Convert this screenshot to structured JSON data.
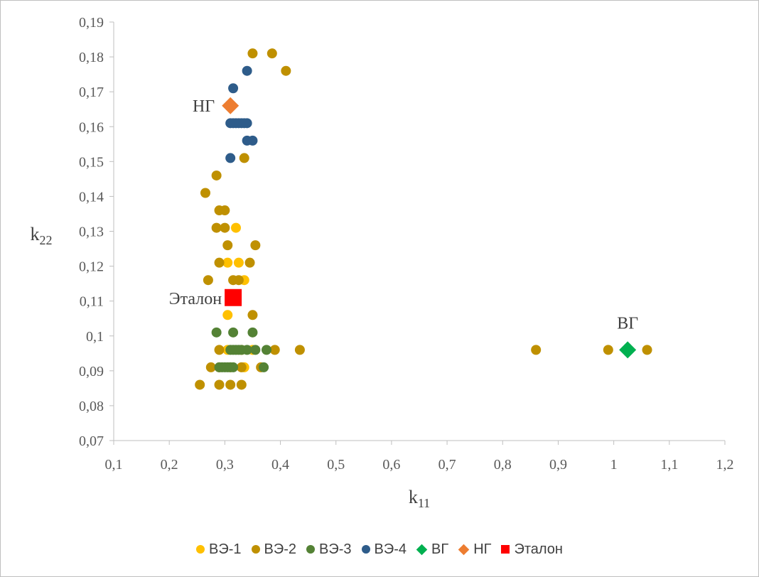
{
  "chart_data": {
    "type": "scatter",
    "title": "",
    "xlabel": "k",
    "xlabel_sub": "11",
    "ylabel": "k",
    "ylabel_sub": "22",
    "xlim": [
      0.1,
      1.2
    ],
    "ylim": [
      0.07,
      0.19
    ],
    "x_ticks": [
      0.1,
      0.2,
      0.3,
      0.4,
      0.5,
      0.6,
      0.7,
      0.8,
      0.9,
      1.0,
      1.1,
      1.2
    ],
    "x_tick_labels": [
      "0,1",
      "0,2",
      "0,3",
      "0,4",
      "0,5",
      "0,6",
      "0,7",
      "0,8",
      "0,9",
      "1",
      "1,1",
      "1,2"
    ],
    "y_ticks": [
      0.07,
      0.08,
      0.09,
      0.1,
      0.11,
      0.12,
      0.13,
      0.14,
      0.15,
      0.16,
      0.17,
      0.18,
      0.19
    ],
    "y_tick_labels": [
      "0,07",
      "0,08",
      "0,09",
      "0,1",
      "0,11",
      "0,12",
      "0,13",
      "0,14",
      "0,15",
      "0,16",
      "0,17",
      "0,18",
      "0,19"
    ],
    "grid": false,
    "legend_position": "bottom",
    "series": [
      {
        "name": "ВЭ-1",
        "marker": "circle",
        "color": "#FFC000",
        "points": [
          [
            0.305,
            0.106
          ],
          [
            0.305,
            0.121
          ],
          [
            0.325,
            0.121
          ],
          [
            0.32,
            0.131
          ],
          [
            0.335,
            0.116
          ],
          [
            0.305,
            0.096
          ],
          [
            0.33,
            0.096
          ],
          [
            0.35,
            0.096
          ],
          [
            0.31,
            0.091
          ],
          [
            0.335,
            0.091
          ]
        ]
      },
      {
        "name": "ВЭ-2",
        "marker": "circle",
        "color": "#BF9000",
        "points": [
          [
            0.35,
            0.181
          ],
          [
            0.385,
            0.181
          ],
          [
            0.41,
            0.176
          ],
          [
            0.335,
            0.151
          ],
          [
            0.285,
            0.146
          ],
          [
            0.265,
            0.141
          ],
          [
            0.29,
            0.136
          ],
          [
            0.3,
            0.136
          ],
          [
            0.285,
            0.131
          ],
          [
            0.3,
            0.131
          ],
          [
            0.305,
            0.126
          ],
          [
            0.355,
            0.126
          ],
          [
            0.29,
            0.121
          ],
          [
            0.345,
            0.121
          ],
          [
            0.27,
            0.116
          ],
          [
            0.315,
            0.116
          ],
          [
            0.325,
            0.116
          ],
          [
            0.35,
            0.106
          ],
          [
            0.29,
            0.096
          ],
          [
            0.39,
            0.096
          ],
          [
            0.435,
            0.096
          ],
          [
            0.86,
            0.096
          ],
          [
            0.99,
            0.096
          ],
          [
            1.06,
            0.096
          ],
          [
            0.275,
            0.091
          ],
          [
            0.29,
            0.091
          ],
          [
            0.33,
            0.091
          ],
          [
            0.365,
            0.091
          ],
          [
            0.255,
            0.086
          ],
          [
            0.29,
            0.086
          ],
          [
            0.31,
            0.086
          ],
          [
            0.33,
            0.086
          ]
        ]
      },
      {
        "name": "ВЭ-3",
        "marker": "circle",
        "color": "#548235",
        "points": [
          [
            0.285,
            0.101
          ],
          [
            0.315,
            0.101
          ],
          [
            0.35,
            0.101
          ],
          [
            0.31,
            0.096
          ],
          [
            0.315,
            0.096
          ],
          [
            0.32,
            0.096
          ],
          [
            0.325,
            0.096
          ],
          [
            0.33,
            0.096
          ],
          [
            0.34,
            0.096
          ],
          [
            0.355,
            0.096
          ],
          [
            0.375,
            0.096
          ],
          [
            0.29,
            0.091
          ],
          [
            0.295,
            0.091
          ],
          [
            0.3,
            0.091
          ],
          [
            0.305,
            0.091
          ],
          [
            0.31,
            0.091
          ],
          [
            0.315,
            0.091
          ],
          [
            0.37,
            0.091
          ]
        ]
      },
      {
        "name": "ВЭ-4",
        "marker": "circle",
        "color": "#2E5C8A",
        "points": [
          [
            0.34,
            0.176
          ],
          [
            0.315,
            0.171
          ],
          [
            0.31,
            0.161
          ],
          [
            0.315,
            0.161
          ],
          [
            0.32,
            0.161
          ],
          [
            0.325,
            0.161
          ],
          [
            0.33,
            0.161
          ],
          [
            0.335,
            0.161
          ],
          [
            0.34,
            0.161
          ],
          [
            0.34,
            0.156
          ],
          [
            0.35,
            0.156
          ],
          [
            0.31,
            0.151
          ]
        ]
      },
      {
        "name": "ВГ",
        "marker": "diamond",
        "color": "#00B050",
        "points": [
          [
            1.025,
            0.096
          ]
        ],
        "annotation": "ВГ"
      },
      {
        "name": "НГ",
        "marker": "diamond",
        "color": "#ED7D31",
        "points": [
          [
            0.31,
            0.166
          ]
        ],
        "annotation": "НГ"
      },
      {
        "name": "Эталон",
        "marker": "square",
        "color": "#FF0000",
        "points": [
          [
            0.315,
            0.111
          ]
        ],
        "annotation": "Эталон"
      }
    ]
  }
}
